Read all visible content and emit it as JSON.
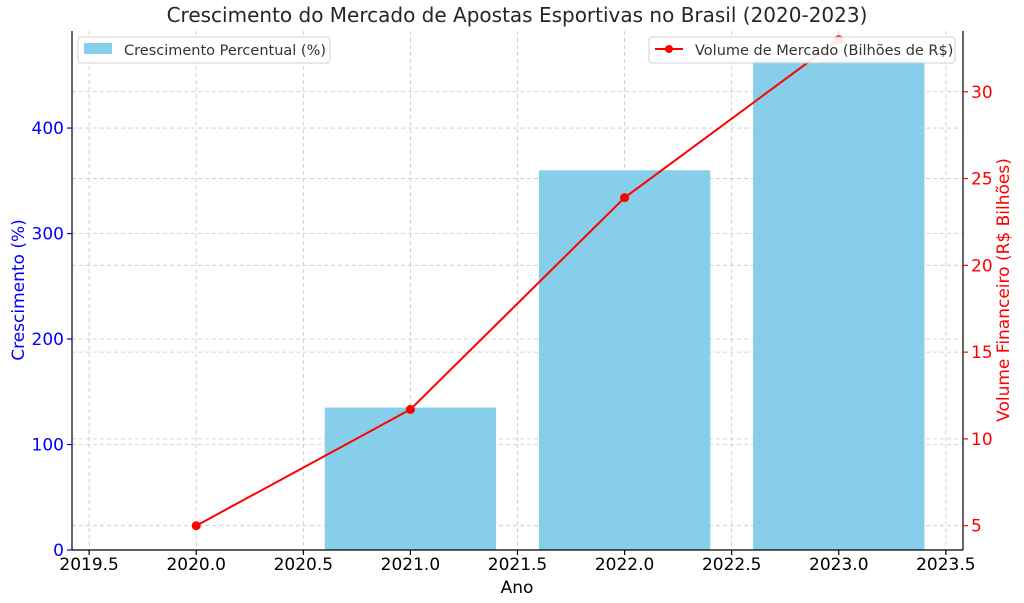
{
  "chart_data": {
    "type": "bar+line",
    "title": "Crescimento do Mercado de Apostas Esportivas no Brasil (2020-2023)",
    "xlabel": "Ano",
    "ylabel_left": "Crescimento (%)",
    "ylabel_right": "Volume Financeiro (R$ Bilhões)",
    "x": [
      2020,
      2021,
      2022,
      2023
    ],
    "xlim": [
      2019.42,
      2023.58
    ],
    "x_ticks": [
      2019.5,
      2020.0,
      2020.5,
      2021.0,
      2021.5,
      2022.0,
      2022.5,
      2023.0,
      2023.5
    ],
    "x_tick_labels": [
      "2019.5",
      "2020.0",
      "2020.5",
      "2021.0",
      "2021.5",
      "2022.0",
      "2022.5",
      "2023.0",
      "2023.5"
    ],
    "ylim_left": [
      0,
      492
    ],
    "y_ticks_left": [
      0,
      100,
      200,
      300,
      400
    ],
    "y_tick_labels_left": [
      "0",
      "100",
      "200",
      "300",
      "400"
    ],
    "ylim_right": [
      3.6,
      33.5
    ],
    "y_ticks_right": [
      5,
      10,
      15,
      20,
      25,
      30
    ],
    "y_tick_labels_right": [
      "5",
      "10",
      "15",
      "20",
      "25",
      "30"
    ],
    "grid": true,
    "bar_series": {
      "name": "Crescimento Percentual (%)",
      "axis": "left",
      "values": [
        0,
        135,
        360,
        465
      ],
      "bar_width": 0.8,
      "color": "#87CEEB"
    },
    "line_series": {
      "name": "Volume de Mercado (Bilhões de R$)",
      "axis": "right",
      "values": [
        5.0,
        11.7,
        23.9,
        33.0
      ],
      "color": "#ff0000",
      "marker": "circle"
    },
    "legend_left": {
      "placement": "upper-left",
      "label": "Crescimento Percentual (%)"
    },
    "legend_right": {
      "placement": "upper-right",
      "label": "Volume de Mercado (Bilhões de R$)"
    },
    "left_axis_color": "#0000ff",
    "right_axis_color": "#ff0000"
  }
}
